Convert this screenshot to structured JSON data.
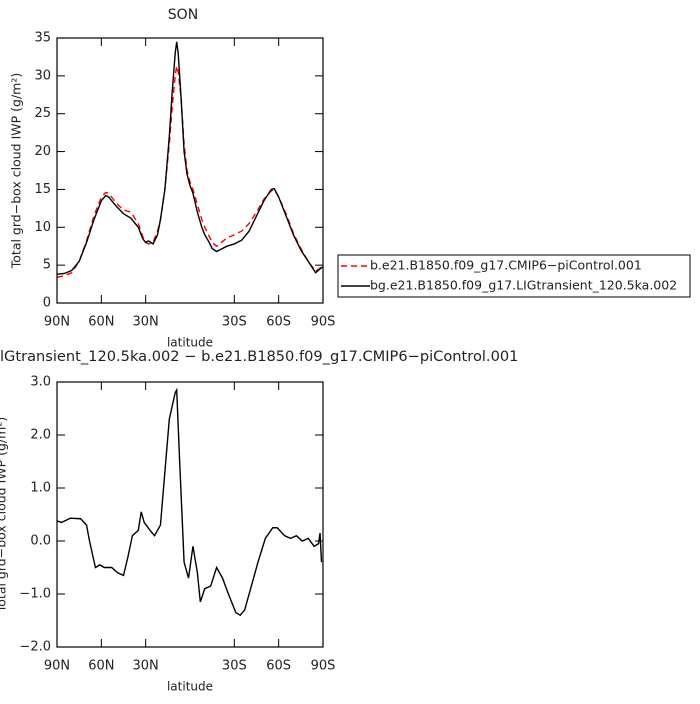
{
  "chart_data": [
    {
      "type": "line",
      "title": "SON",
      "y_label": "Total grd−box cloud IWP (g/m²)",
      "x_label": "latitude",
      "x": [
        90,
        85,
        80,
        75,
        70,
        65,
        60,
        57,
        55,
        50,
        45,
        40,
        35,
        32,
        30,
        28,
        25,
        22,
        20,
        17,
        14,
        12,
        10,
        9,
        8,
        6,
        4,
        2,
        0,
        -2,
        -5,
        -8,
        -10,
        -13,
        -15,
        -18,
        -20,
        -25,
        -30,
        -35,
        -40,
        -45,
        -50,
        -55,
        -57,
        -60,
        -65,
        -70,
        -75,
        -80,
        -85,
        -88,
        -90
      ],
      "series": [
        {
          "name": "b.e21.B1850.f09_g17.CMIP6−piControl.001",
          "color": "#ff0000",
          "linestyle": "dashed",
          "values": [
            3.4,
            3.6,
            4,
            5.5,
            8.2,
            11.5,
            14,
            14.6,
            14.5,
            13.2,
            12.3,
            12,
            10.5,
            8.8,
            8,
            7.8,
            8,
            9.5,
            11,
            15,
            21,
            26,
            30,
            31.3,
            30.5,
            27,
            21,
            17.5,
            16,
            15,
            13,
            11,
            10,
            8.8,
            8,
            7.5,
            7.8,
            8.6,
            9,
            9.5,
            10.5,
            12,
            13.7,
            14.8,
            15,
            14,
            11.8,
            9.2,
            7.2,
            5.5,
            4.2,
            4.6,
            4.9
          ]
        },
        {
          "name": "bg.e21.B1850.f09_g17.LIGtransient_120.5ka.002",
          "color": "#000000",
          "linestyle": "solid",
          "values": [
            3.8,
            3.9,
            4.3,
            5.5,
            8,
            11,
            13.5,
            14.2,
            14,
            12.8,
            11.8,
            11.2,
            10,
            8.5,
            8,
            8.2,
            7.8,
            9,
            11,
            15,
            22,
            28,
            33,
            34.5,
            33,
            27,
            20,
            17,
            15.5,
            14.5,
            12,
            10,
            9,
            8,
            7.2,
            6.8,
            7,
            7.5,
            7.8,
            8.3,
            9.5,
            11.5,
            13.5,
            15,
            15.1,
            14,
            11.5,
            9,
            7,
            5.5,
            4,
            4.5,
            4.8
          ]
        }
      ],
      "xlim": [
        90,
        -90
      ],
      "xticks": [
        {
          "value": 90,
          "label": "90N"
        },
        {
          "value": 60,
          "label": "60N"
        },
        {
          "value": 30,
          "label": "30N"
        },
        {
          "value": -30,
          "label": "30S"
        },
        {
          "value": -60,
          "label": "60S"
        },
        {
          "value": -90,
          "label": "90S"
        }
      ],
      "ylim": [
        0,
        35
      ],
      "yticks": [
        0,
        5,
        10,
        15,
        20,
        25,
        30,
        35
      ],
      "legend": "outside right"
    },
    {
      "type": "line",
      "title": "lGtransient_120.5ka.002 − b.e21.B1850.f09_g17.CMIP6−piControl.001",
      "y_label": "Total grd−box cloud IWP (g/m²)",
      "x_label": "latitude",
      "x": [
        90,
        87,
        81,
        74,
        70,
        68,
        64,
        61,
        58,
        53,
        49,
        45,
        42,
        39,
        35,
        33,
        31,
        27,
        24,
        20,
        17,
        14,
        10,
        9,
        7,
        4,
        1,
        -2,
        -5,
        -7,
        -10,
        -14,
        -18,
        -22,
        -26,
        -31,
        -34,
        -37,
        -42,
        -46,
        -51,
        -56,
        -59,
        -64,
        -68,
        -72,
        -76,
        -80,
        -84,
        -87,
        -88,
        -89
      ],
      "values": [
        0.38,
        0.35,
        0.43,
        0.42,
        0.3,
        0.0,
        -0.5,
        -0.45,
        -0.5,
        -0.5,
        -0.6,
        -0.65,
        -0.3,
        0.1,
        0.2,
        0.55,
        0.35,
        0.2,
        0.1,
        0.3,
        1.3,
        2.3,
        2.8,
        2.85,
        1.5,
        -0.4,
        -0.7,
        -0.1,
        -0.6,
        -1.15,
        -0.9,
        -0.85,
        -0.5,
        -0.7,
        -1.0,
        -1.35,
        -1.4,
        -1.3,
        -0.8,
        -0.4,
        0.05,
        0.25,
        0.25,
        0.1,
        0.05,
        0.1,
        0.0,
        0.05,
        -0.1,
        -0.05,
        0.15,
        -0.4
      ],
      "color": "#000000",
      "linestyle": "solid",
      "xlim": [
        90,
        -90
      ],
      "xticks": [
        {
          "value": 90,
          "label": "90N"
        },
        {
          "value": 60,
          "label": "60N"
        },
        {
          "value": 30,
          "label": "30N"
        },
        {
          "value": -30,
          "label": "30S"
        },
        {
          "value": -60,
          "label": "60S"
        },
        {
          "value": -90,
          "label": "90S"
        }
      ],
      "ylim": [
        -2,
        3
      ],
      "yticks": [
        {
          "value": -2,
          "label": "−2.0"
        },
        {
          "value": -1,
          "label": "−1.0"
        },
        {
          "value": 0,
          "label": "0.0"
        },
        {
          "value": 1,
          "label": "1.0"
        },
        {
          "value": 2,
          "label": "2.0"
        },
        {
          "value": 3,
          "label": "3.0"
        }
      ]
    }
  ]
}
